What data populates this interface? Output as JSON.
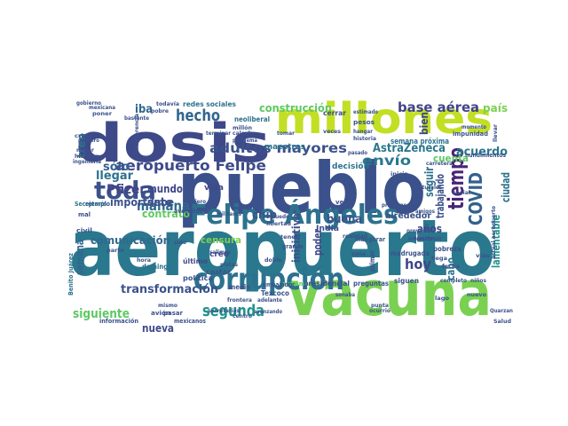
{
  "wordcloud": {
    "words": [
      {
        "text": "aeropuerto",
        "color": "#2a788e"
      },
      {
        "text": "pueblo",
        "color": "#3b518b"
      },
      {
        "text": "dosis",
        "color": "#3e4989"
      },
      {
        "text": "vacuna",
        "color": "#7ad151"
      },
      {
        "text": "millones",
        "color": "#c2df23"
      },
      {
        "text": "Felipe Ángeles",
        "color": "#2c728e"
      },
      {
        "text": "corrupción",
        "color": "#2c728e"
      },
      {
        "text": "toda",
        "color": "#3b528b"
      },
      {
        "text": "tiempo",
        "color": "#482576"
      },
      {
        "text": "COVID",
        "color": "#34608d"
      },
      {
        "text": "hecho",
        "color": "#32658e"
      },
      {
        "text": "aeropuerto Felipe",
        "color": "#3e4a89"
      },
      {
        "text": "adultos mayores",
        "color": "#3b528b"
      },
      {
        "text": "base aérea",
        "color": "#414487"
      },
      {
        "text": "segunda",
        "color": "#20928c"
      },
      {
        "text": "hoy",
        "color": "#3f4788"
      },
      {
        "text": "construcción",
        "color": "#5ec962"
      },
      {
        "text": "envío",
        "color": "#2a788e"
      },
      {
        "text": "mañana",
        "color": "#31688e"
      },
      {
        "text": "Pfizer",
        "color": "#414487"
      },
      {
        "text": "transformación",
        "color": "#3b528b"
      },
      {
        "text": "AstraZeneca",
        "color": "#2a788e"
      },
      {
        "text": "siguiente",
        "color": "#5ec962"
      },
      {
        "text": "llegar",
        "color": "#2c728e"
      },
      {
        "text": "sólo",
        "color": "#35608d"
      },
      {
        "text": "acuerdo",
        "color": "#2a788e"
      },
      {
        "text": "seguir",
        "color": "#2c728e"
      },
      {
        "text": "comunicación",
        "color": "#31688e"
      },
      {
        "text": "buena",
        "color": "#3b528b"
      },
      {
        "text": "trabajando",
        "color": "#3b528b"
      },
      {
        "text": "nueva",
        "color": "#3e4989"
      },
      {
        "text": "iba",
        "color": "#31688e"
      },
      {
        "text": "importante",
        "color": "#3b528b"
      },
      {
        "text": "mundo",
        "color": "#3f4788"
      },
      {
        "text": "debe",
        "color": "#3b528b"
      },
      {
        "text": "contrato",
        "color": "#5ec962"
      },
      {
        "text": "ciudad",
        "color": "#2c728e"
      },
      {
        "text": "lamentable",
        "color": "#21918c"
      },
      {
        "text": "cabo",
        "color": "#2c728e"
      },
      {
        "text": "poder",
        "color": "#3e4989"
      },
      {
        "text": "iniciativa",
        "color": "#3b528b"
      },
      {
        "text": "semana",
        "color": "#32658e"
      },
      {
        "text": "tren",
        "color": "#2c728e"
      },
      {
        "text": "bien",
        "color": "#3e4989"
      },
      {
        "text": "país",
        "color": "#7ad151"
      },
      {
        "text": "años",
        "color": "#3e4989"
      },
      {
        "text": "cuenta",
        "color": "#5ec962"
      },
      {
        "text": "chip",
        "color": "#3b528b"
      },
      {
        "text": "censura",
        "color": "#7ad151"
      },
      {
        "text": "alrededor",
        "color": "#3b528b"
      },
      {
        "text": "maestros",
        "color": "#2c728e"
      },
      {
        "text": "vida",
        "color": "#3f4788"
      },
      {
        "text": "India",
        "color": "#3e4989"
      },
      {
        "text": "decisión",
        "color": "#2c728e"
      },
      {
        "text": "semana próxima",
        "color": "#2c728e"
      },
      {
        "text": "redes sociales",
        "color": "#2c728e"
      },
      {
        "text": "neoliberal",
        "color": "#2c728e"
      },
      {
        "text": "cerrar",
        "color": "#3b528b"
      },
      {
        "text": "pesos",
        "color": "#3b528b"
      },
      {
        "text": "impunidad",
        "color": "#3b528b"
      },
      {
        "text": "política",
        "color": "#3b528b"
      },
      {
        "text": "domingo",
        "color": "#2c728e"
      },
      {
        "text": "último",
        "color": "#3e4989"
      },
      {
        "text": "creo",
        "color": "#3f4788"
      },
      {
        "text": "costar",
        "color": "#3b528b"
      },
      {
        "text": "medio",
        "color": "#3b528b"
      },
      {
        "text": "madrugada",
        "color": "#3b528b"
      },
      {
        "text": "siguen",
        "color": "#3b528b"
      },
      {
        "text": "pobreza",
        "color": "#3b528b"
      },
      {
        "text": "próxima",
        "color": "#5ec962"
      },
      {
        "text": "presidencial",
        "color": "#3b528b"
      },
      {
        "text": "preguntas",
        "color": "#3b528b"
      },
      {
        "text": "primer",
        "color": "#3b528b"
      },
      {
        "text": "embajador",
        "color": "#3b528b"
      },
      {
        "text": "Texcoco",
        "color": "#3b528b"
      },
      {
        "text": "pasar",
        "color": "#3b528b"
      },
      {
        "text": "avión",
        "color": "#3b528b"
      },
      {
        "text": "información",
        "color": "#3b528b"
      },
      {
        "text": "mexicanos",
        "color": "#3b528b"
      },
      {
        "text": "Benito Juárez",
        "color": "#2c728e"
      },
      {
        "text": "civil",
        "color": "#3b528b"
      },
      {
        "text": "ejemplo",
        "color": "#3b528b"
      },
      {
        "text": "Secretaría",
        "color": "#2c728e"
      },
      {
        "text": "mal",
        "color": "#3b528b"
      },
      {
        "text": "avenidas",
        "color": "#3b528b"
      },
      {
        "text": "militares",
        "color": "#3b528b"
      },
      {
        "text": "grande",
        "color": "#3b528b"
      },
      {
        "text": "verde",
        "color": "#3b528b"
      },
      {
        "text": "inaugurar",
        "color": "#3b528b"
      },
      {
        "text": "realidad",
        "color": "#3b528b"
      },
      {
        "text": "nuevo",
        "color": "#3b528b"
      },
      {
        "text": "Salud",
        "color": "#3b528b"
      },
      {
        "text": "Quarzan",
        "color": "#3b528b"
      },
      {
        "text": "fecha",
        "color": "#3b528b"
      },
      {
        "text": "vías",
        "color": "#3b528b"
      },
      {
        "text": "hundimientos",
        "color": "#3b528b"
      },
      {
        "text": "construir",
        "color": "#3b528b"
      },
      {
        "text": "proyecto",
        "color": "#3b528b"
      },
      {
        "text": "inversión",
        "color": "#3b528b"
      },
      {
        "text": "actual aeropuerto",
        "color": "#3b528b"
      },
      {
        "text": "naturales",
        "color": "#3b528b"
      },
      {
        "text": "social",
        "color": "#3b528b"
      },
      {
        "text": "hangar",
        "color": "#3b528b"
      },
      {
        "text": "estimado",
        "color": "#3b528b"
      },
      {
        "text": "veces",
        "color": "#3b528b"
      },
      {
        "text": "pasado",
        "color": "#3b528b"
      },
      {
        "text": "tomar",
        "color": "#3b528b"
      },
      {
        "text": "millón",
        "color": "#3b528b"
      },
      {
        "text": "calcula",
        "color": "#3b528b"
      },
      {
        "text": "terminar",
        "color": "#3b528b"
      },
      {
        "text": "problema",
        "color": "#3b528b"
      },
      {
        "text": "bastante",
        "color": "#3b528b"
      },
      {
        "text": "poner",
        "color": "#3b528b"
      },
      {
        "text": "mexicana",
        "color": "#3b528b"
      },
      {
        "text": "todavía",
        "color": "#3b528b"
      },
      {
        "text": "pobre",
        "color": "#3b528b"
      },
      {
        "text": "gobierno",
        "color": "#3b528b"
      },
      {
        "text": "primero",
        "color": "#3b528b"
      },
      {
        "text": "hicieron",
        "color": "#3b528b"
      },
      {
        "text": "mejor",
        "color": "#3b528b"
      },
      {
        "text": "ingeniería",
        "color": "#3b528b"
      },
      {
        "text": "parte",
        "color": "#3b528b"
      },
      {
        "text": "hora",
        "color": "#3b528b"
      },
      {
        "text": "libertad",
        "color": "#3b528b"
      },
      {
        "text": "sido",
        "color": "#3b528b"
      },
      {
        "text": "mismo",
        "color": "#3b528b"
      },
      {
        "text": "adelante",
        "color": "#3b528b"
      },
      {
        "text": "frontera",
        "color": "#3b528b"
      },
      {
        "text": "avanzando",
        "color": "#3b528b"
      },
      {
        "text": "pistas",
        "color": "#3b528b"
      },
      {
        "text": "centro",
        "color": "#3b528b"
      },
      {
        "text": "zona",
        "color": "#3b528b"
      },
      {
        "text": "puede",
        "color": "#3b528b"
      },
      {
        "text": "tener",
        "color": "#3b528b"
      },
      {
        "text": "doble",
        "color": "#3b528b"
      },
      {
        "text": "punta",
        "color": "#3b528b"
      },
      {
        "text": "ocurrió",
        "color": "#3b528b"
      },
      {
        "text": "completo",
        "color": "#3b528b"
      },
      {
        "text": "lago",
        "color": "#3b528b"
      },
      {
        "text": "niños",
        "color": "#3b528b"
      },
      {
        "text": "historia",
        "color": "#3b528b"
      },
      {
        "text": "llevar",
        "color": "#3b528b"
      },
      {
        "text": "inicia",
        "color": "#3b528b"
      },
      {
        "text": "primeras",
        "color": "#3b528b"
      },
      {
        "text": "momento",
        "color": "#3b528b"
      },
      {
        "text": "crisis",
        "color": "#3b528b"
      },
      {
        "text": "interferencia",
        "color": "#3b528b"
      },
      {
        "text": "salimos",
        "color": "#3b528b"
      },
      {
        "text": "quiero",
        "color": "#3b528b"
      },
      {
        "text": "sonaba",
        "color": "#3b528b"
      },
      {
        "text": "llega",
        "color": "#3b528b"
      },
      {
        "text": "carretera",
        "color": "#3b528b"
      },
      {
        "text": "amigos",
        "color": "#3b528b"
      },
      {
        "text": "secretarias",
        "color": "#3b528b"
      }
    ]
  }
}
